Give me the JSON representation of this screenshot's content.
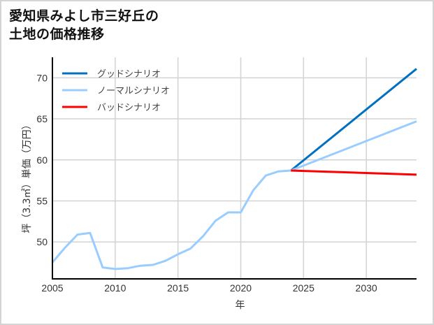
{
  "chart_data": {
    "type": "line",
    "title_lines": [
      "愛知県みよし市三好丘の",
      "土地の価格推移"
    ],
    "xlabel": "年",
    "ylabel": "坪（3.3㎡）単価（万円）",
    "xlim": [
      2005,
      2034
    ],
    "ylim": [
      45.5,
      72.5
    ],
    "x_ticks": [
      2005,
      2010,
      2015,
      2020,
      2025,
      2030
    ],
    "y_ticks": [
      50,
      55,
      60,
      65,
      70
    ],
    "grid": true,
    "legend_position": "upper left",
    "series": [
      {
        "name": "グッドシナリオ",
        "color": "#0070c0",
        "x": [
          2024,
          2034
        ],
        "values": [
          58.7,
          71.1
        ]
      },
      {
        "name": "ノーマルシナリオ",
        "color": "#99ccff",
        "x": [
          2005,
          2006,
          2007,
          2008,
          2009,
          2010,
          2011,
          2012,
          2013,
          2014,
          2015,
          2016,
          2017,
          2018,
          2019,
          2020,
          2021,
          2022,
          2023,
          2024,
          2034
        ],
        "values": [
          47.5,
          49.3,
          50.9,
          51.1,
          46.9,
          46.7,
          46.8,
          47.1,
          47.2,
          47.7,
          48.5,
          49.2,
          50.7,
          52.6,
          53.6,
          53.6,
          56.3,
          58.1,
          58.6,
          58.7,
          64.7
        ]
      },
      {
        "name": "バッドシナリオ",
        "color": "#ff0000",
        "x": [
          2024,
          2034
        ],
        "values": [
          58.7,
          58.2
        ]
      }
    ]
  }
}
